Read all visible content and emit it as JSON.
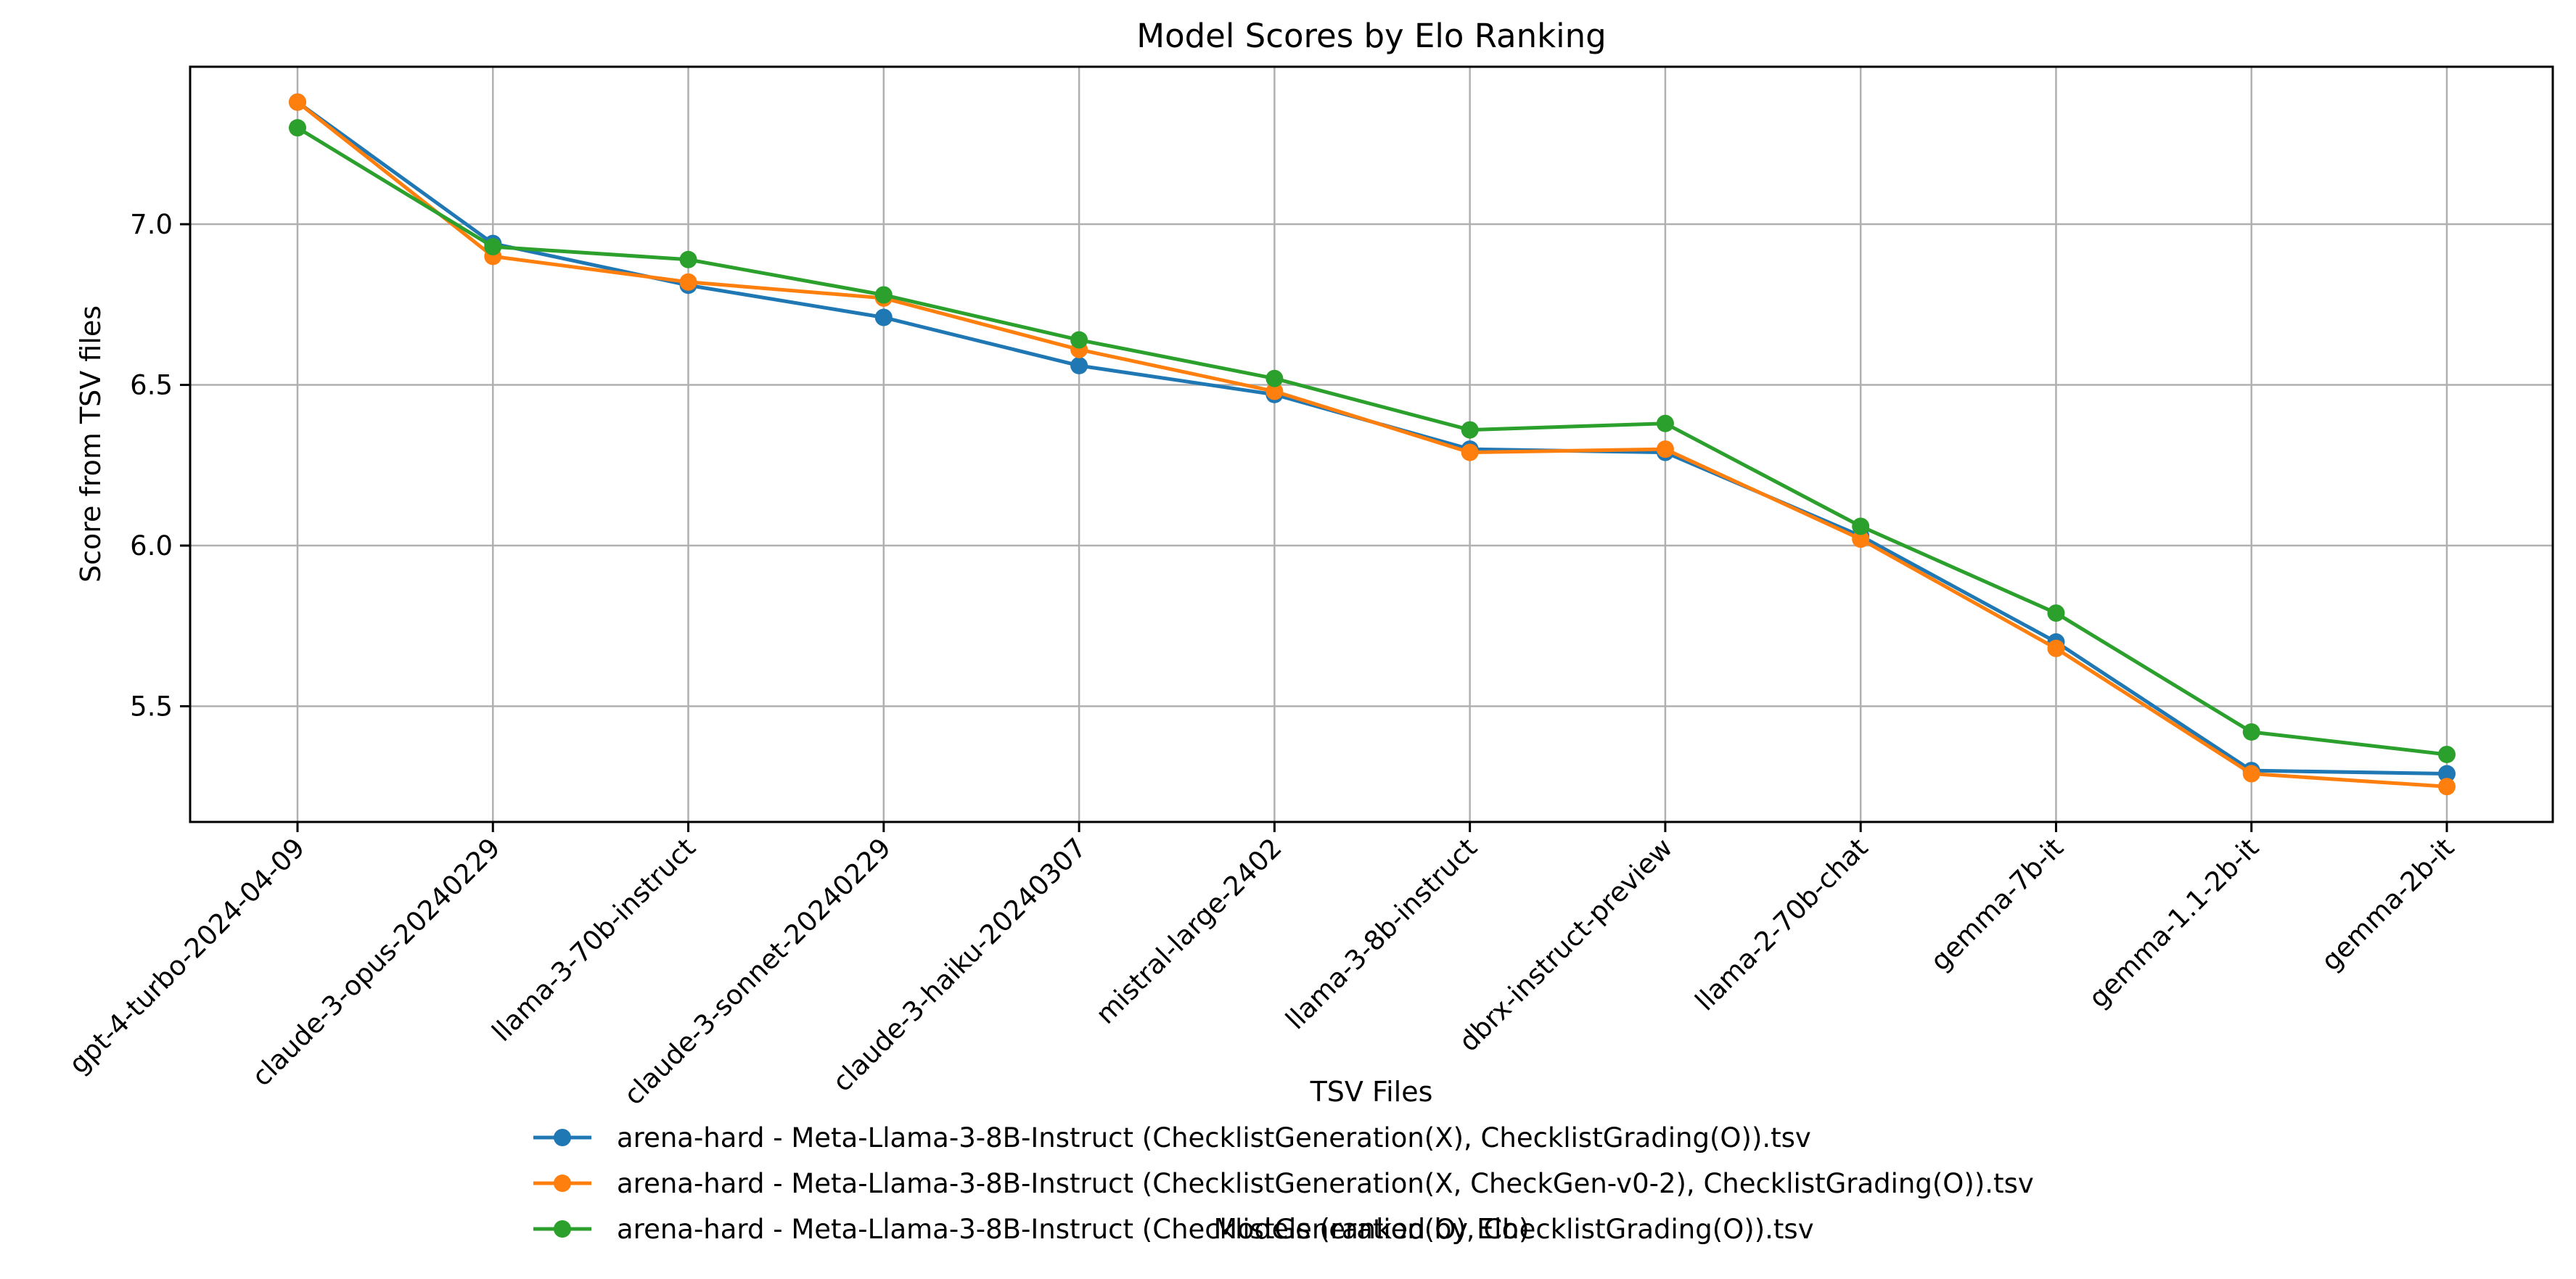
{
  "chart_data": {
    "type": "line",
    "title": "Model Scores by Elo Ranking",
    "xlabel": "TSV Files",
    "ylabel": "Score from TSV files",
    "overlay_label": "Models (ranked by Elo)",
    "categories": [
      "gpt-4-turbo-2024-04-09",
      "claude-3-opus-20240229",
      "llama-3-70b-instruct",
      "claude-3-sonnet-20240229",
      "claude-3-haiku-20240307",
      "mistral-large-2402",
      "llama-3-8b-instruct",
      "dbrx-instruct-preview",
      "llama-2-70b-chat",
      "gemma-7b-it",
      "gemma-1.1-2b-it",
      "gemma-2b-it"
    ],
    "ylim": [
      5.14,
      7.49
    ],
    "yticks": [
      {
        "value": 5.5,
        "label": "5.5"
      },
      {
        "value": 6.0,
        "label": "6.0"
      },
      {
        "value": 6.5,
        "label": "6.5"
      },
      {
        "value": 7.0,
        "label": "7.0"
      }
    ],
    "grid": true,
    "legend_position": "bottom-center",
    "series": [
      {
        "name": "arena-hard - Meta-Llama-3-8B-Instruct (ChecklistGeneration(X), ChecklistGrading(O)).tsv",
        "color": "#1f77b4",
        "values": [
          7.38,
          6.94,
          6.81,
          6.71,
          6.56,
          6.47,
          6.3,
          6.29,
          6.03,
          5.7,
          5.3,
          5.29
        ]
      },
      {
        "name": "arena-hard - Meta-Llama-3-8B-Instruct (ChecklistGeneration(X, CheckGen-v0-2), ChecklistGrading(O)).tsv",
        "color": "#ff7f0e",
        "values": [
          7.38,
          6.9,
          6.82,
          6.77,
          6.61,
          6.48,
          6.29,
          6.3,
          6.02,
          5.68,
          5.29,
          5.25
        ]
      },
      {
        "name": "arena-hard - Meta-Llama-3-8B-Instruct (ChecklistGeneration(O), ChecklistGrading(O)).tsv",
        "color": "#2ca02c",
        "values": [
          7.3,
          6.93,
          6.89,
          6.78,
          6.64,
          6.52,
          6.36,
          6.38,
          6.06,
          5.79,
          5.42,
          5.35
        ]
      }
    ]
  }
}
